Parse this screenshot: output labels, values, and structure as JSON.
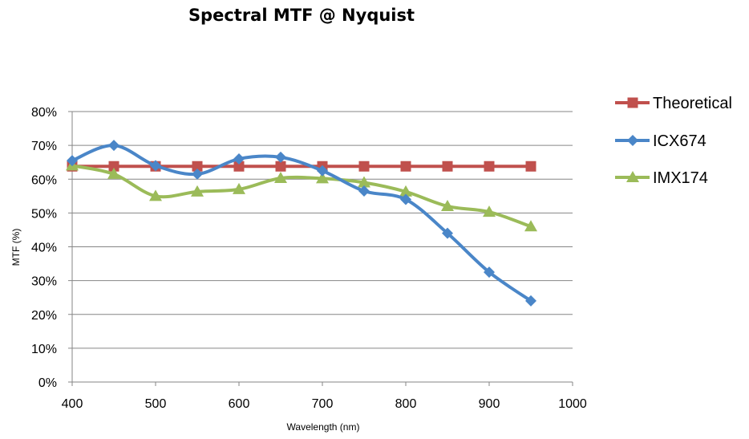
{
  "chart_data": {
    "type": "line",
    "title": "Spectral MTF @ Nyquist",
    "xlabel": "Wavelength (nm)",
    "ylabel": "MTF (%)",
    "xlim": [
      400,
      1000
    ],
    "ylim": [
      0,
      80
    ],
    "x_ticks": [
      "400",
      "500",
      "600",
      "700",
      "800",
      "900",
      "1000"
    ],
    "y_ticks": [
      "0%",
      "10%",
      "20%",
      "30%",
      "40%",
      "50%",
      "60%",
      "70%",
      "80%"
    ],
    "grid": "horizontal",
    "legend_position": "right",
    "series": [
      {
        "name": "Theoretical",
        "color": "#c0504d",
        "marker": "square",
        "x": [
          400,
          450,
          500,
          550,
          600,
          650,
          700,
          750,
          800,
          850,
          900,
          950
        ],
        "values": [
          63.8,
          63.8,
          63.8,
          63.8,
          63.8,
          63.8,
          63.8,
          63.8,
          63.8,
          63.8,
          63.8,
          63.8
        ]
      },
      {
        "name": "ICX674",
        "color": "#4a86c8",
        "marker": "diamond",
        "x": [
          400,
          450,
          500,
          550,
          600,
          650,
          700,
          750,
          800,
          850,
          900,
          950
        ],
        "values": [
          65.5,
          70,
          64,
          61.5,
          66,
          66.5,
          62.5,
          56.5,
          54,
          44,
          32.5,
          24
        ]
      },
      {
        "name": "IMX174",
        "color": "#9bbb59",
        "marker": "triangle",
        "x": [
          400,
          450,
          500,
          550,
          600,
          650,
          700,
          750,
          800,
          850,
          900,
          950
        ],
        "values": [
          64,
          61.5,
          55,
          56.3,
          57,
          60.3,
          60.2,
          59,
          56.3,
          52,
          50.3,
          46
        ]
      }
    ]
  }
}
